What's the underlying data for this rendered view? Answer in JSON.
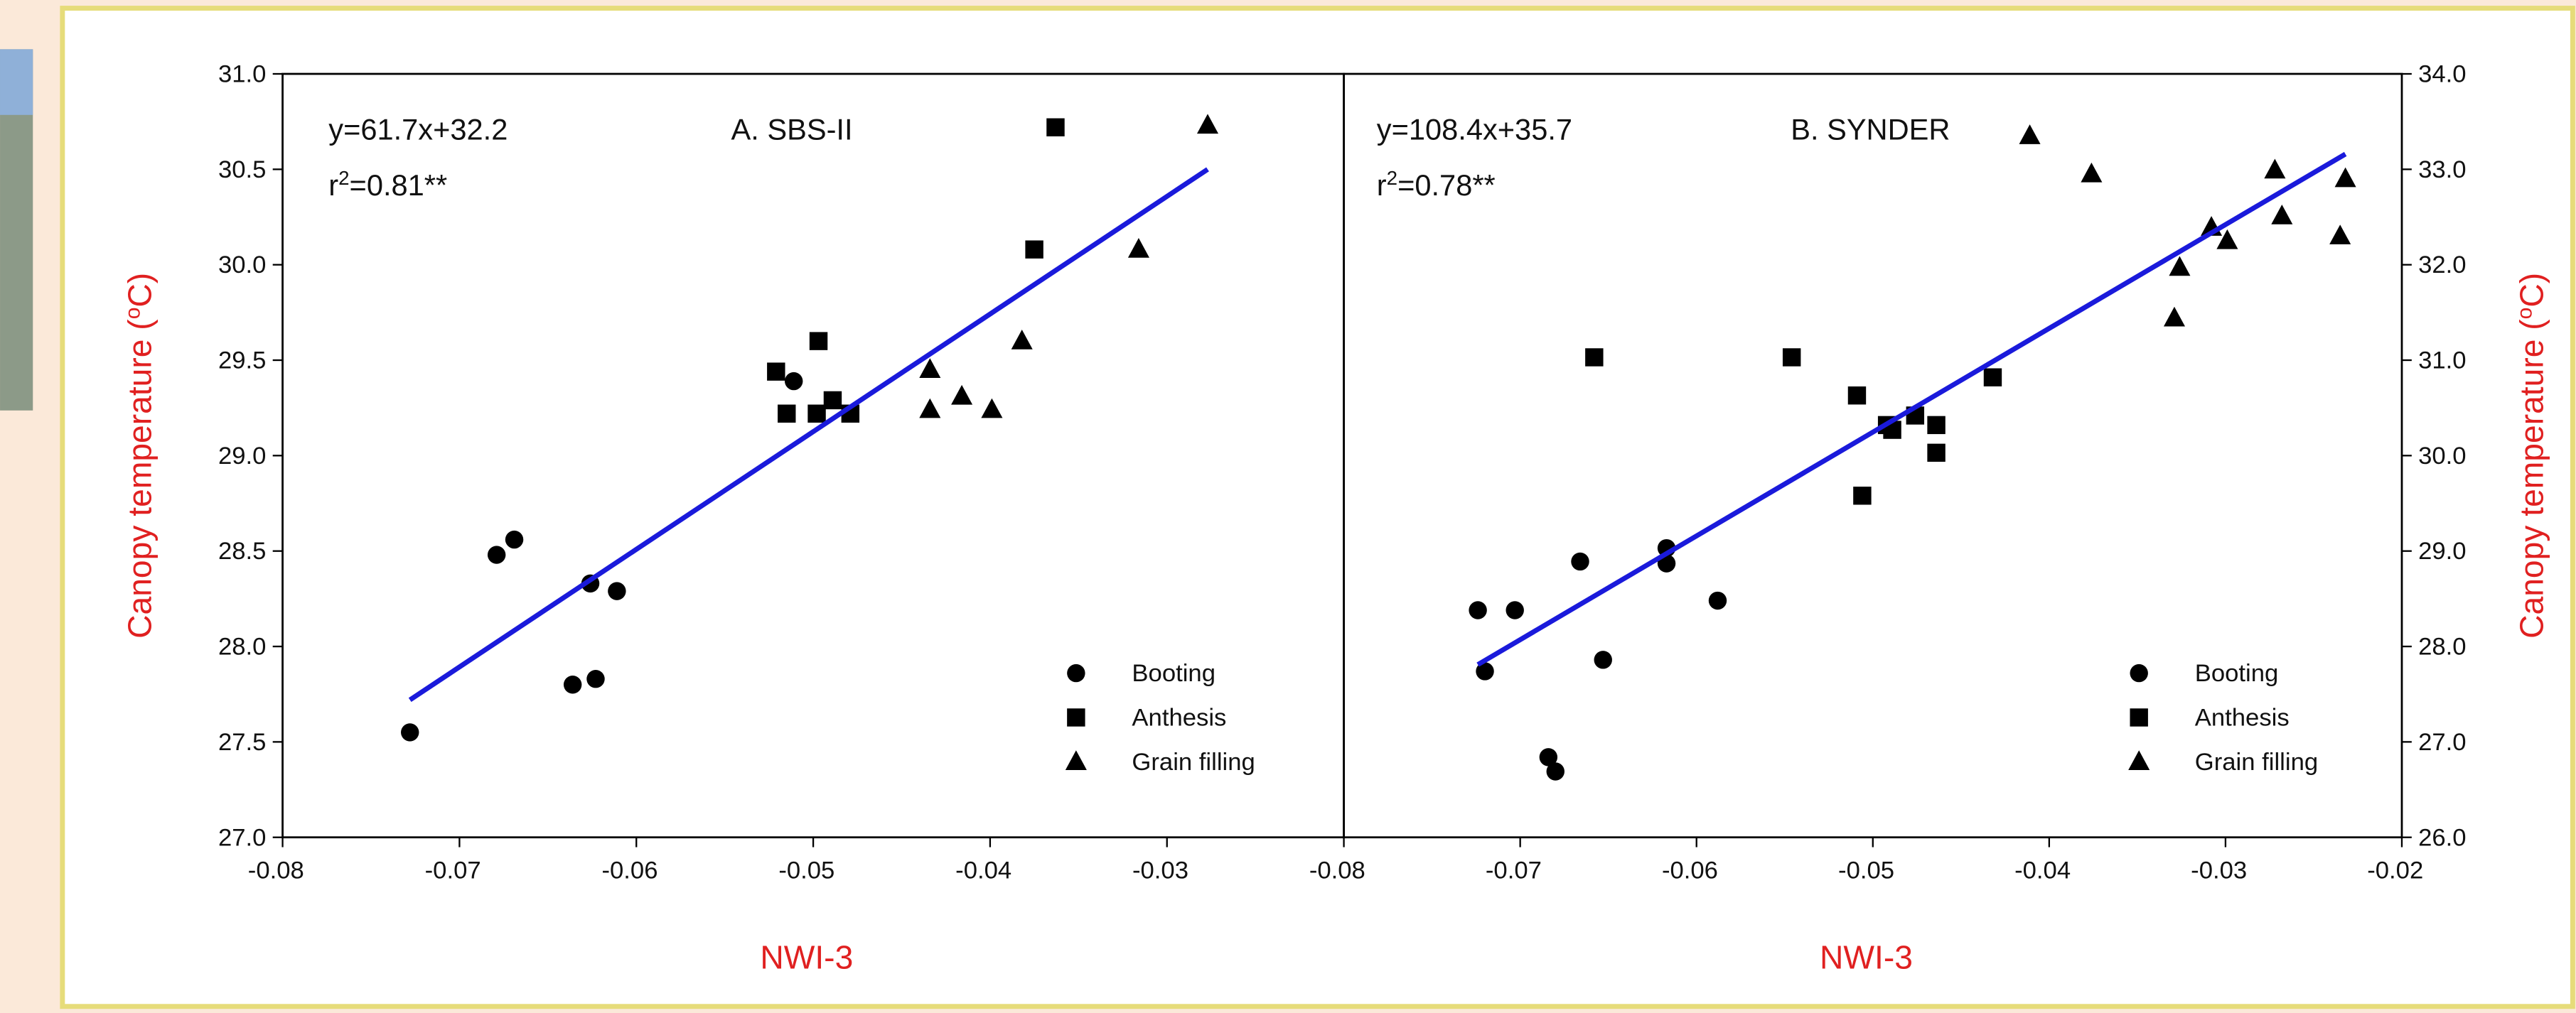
{
  "chart_data": [
    {
      "type": "scatter",
      "title": "A. SBS-II",
      "annotations": [
        [
          "y=61.7x+32.2"
        ],
        [
          "r",
          "2",
          "=0.81**"
        ]
      ],
      "xlabel": "NWI-3",
      "ylabel": [
        "Canopy temperature (",
        "o",
        "C)"
      ],
      "yaxis": "left",
      "xlim": [
        -0.08,
        -0.02
      ],
      "xticks": [
        -0.08,
        -0.07,
        -0.06,
        -0.05,
        -0.04,
        -0.03
      ],
      "ylim": [
        27,
        31
      ],
      "yticks": [
        {
          "value": 27,
          "label": "27.0"
        },
        {
          "value": 27.5,
          "label": "27.5"
        },
        {
          "value": 28,
          "label": "28.0"
        },
        {
          "value": 28.5,
          "label": "28.5"
        },
        {
          "value": 29,
          "label": "29.0"
        },
        {
          "value": 29.5,
          "label": "29.5"
        },
        {
          "value": 30,
          "label": "30.0"
        },
        {
          "value": 30.5,
          "label": "30.5"
        },
        {
          "value": 31,
          "label": "31.0"
        }
      ],
      "legend": "lower right",
      "series": [
        {
          "name": "Booting",
          "marker": "circle",
          "color": "#000000",
          "x": [
            -0.0728,
            -0.0679,
            -0.0669,
            -0.0626,
            -0.0611,
            -0.0636,
            -0.0623,
            -0.0511
          ],
          "values": [
            27.55,
            28.48,
            28.56,
            28.33,
            28.29,
            27.8,
            27.83,
            29.39
          ]
        },
        {
          "name": "Anthesis",
          "marker": "square",
          "color": "#000000",
          "x": [
            -0.0521,
            -0.0515,
            -0.0497,
            -0.0498,
            -0.0489,
            -0.0479,
            -0.0363,
            -0.0375
          ],
          "values": [
            29.44,
            29.22,
            29.6,
            29.22,
            29.29,
            29.22,
            30.72,
            30.08
          ]
        },
        {
          "name": "Grain filling",
          "marker": "triangle",
          "color": "#000000",
          "x": [
            -0.0434,
            -0.0434,
            -0.0416,
            -0.0399,
            -0.0382,
            -0.0316,
            -0.0277
          ],
          "values": [
            29.45,
            29.24,
            29.31,
            29.24,
            29.6,
            30.08,
            30.73
          ]
        }
      ],
      "fit": {
        "color": "#1a1adb",
        "x": [
          -0.0728,
          -0.0277
        ],
        "values": [
          27.72,
          30.5
        ]
      }
    },
    {
      "type": "scatter",
      "title": "B. SYNDER",
      "annotations": [
        [
          "y=108.4x+35.7"
        ],
        [
          "r",
          "2",
          "=0.78**"
        ]
      ],
      "xlabel": "NWI-3",
      "ylabel": [
        "Canopy temperature (",
        "o",
        "C)"
      ],
      "yaxis": "right",
      "xlim": [
        -0.08,
        -0.02
      ],
      "xticks": [
        -0.08,
        -0.07,
        -0.06,
        -0.05,
        -0.04,
        -0.03,
        -0.02
      ],
      "ylim": [
        26,
        34
      ],
      "yticks": [
        {
          "value": 26,
          "label": "26.0"
        },
        {
          "value": 27,
          "label": "27.0"
        },
        {
          "value": 28,
          "label": "28.0"
        },
        {
          "value": 29,
          "label": "29.0"
        },
        {
          "value": 30,
          "label": "30.0"
        },
        {
          "value": 31,
          "label": "31.0"
        },
        {
          "value": 32,
          "label": "32.0"
        },
        {
          "value": 33,
          "label": "33.0"
        },
        {
          "value": 34,
          "label": "34.0"
        }
      ],
      "legend": "lower right",
      "series": [
        {
          "name": "Booting",
          "marker": "circle",
          "color": "#000000",
          "x": [
            -0.0724,
            -0.072,
            -0.0703,
            -0.0684,
            -0.068,
            -0.0666,
            -0.0653,
            -0.0617,
            -0.0617,
            -0.0588
          ],
          "values": [
            28.38,
            27.74,
            28.38,
            26.84,
            26.69,
            28.89,
            27.86,
            29.03,
            28.87,
            28.48
          ]
        },
        {
          "name": "Anthesis",
          "marker": "square",
          "color": "#000000",
          "x": [
            -0.0658,
            -0.0546,
            -0.0509,
            -0.0506,
            -0.0492,
            -0.0489,
            -0.0476,
            -0.0464,
            -0.0464,
            -0.0432
          ],
          "values": [
            31.03,
            31.03,
            30.63,
            29.58,
            30.32,
            30.27,
            30.42,
            30.32,
            30.03,
            30.82
          ]
        },
        {
          "name": "Grain filling",
          "marker": "triangle",
          "color": "#000000",
          "x": [
            -0.0411,
            -0.0376,
            -0.0329,
            -0.0326,
            -0.0308,
            -0.0299,
            -0.0272,
            -0.0268,
            -0.0235,
            -0.0232
          ],
          "values": [
            33.35,
            32.95,
            31.44,
            31.97,
            32.39,
            32.25,
            32.99,
            32.51,
            32.3,
            32.9
          ]
        }
      ],
      "fit": {
        "color": "#1a1adb",
        "x": [
          -0.0724,
          -0.0232
        ],
        "values": [
          27.81,
          33.16
        ]
      }
    }
  ]
}
